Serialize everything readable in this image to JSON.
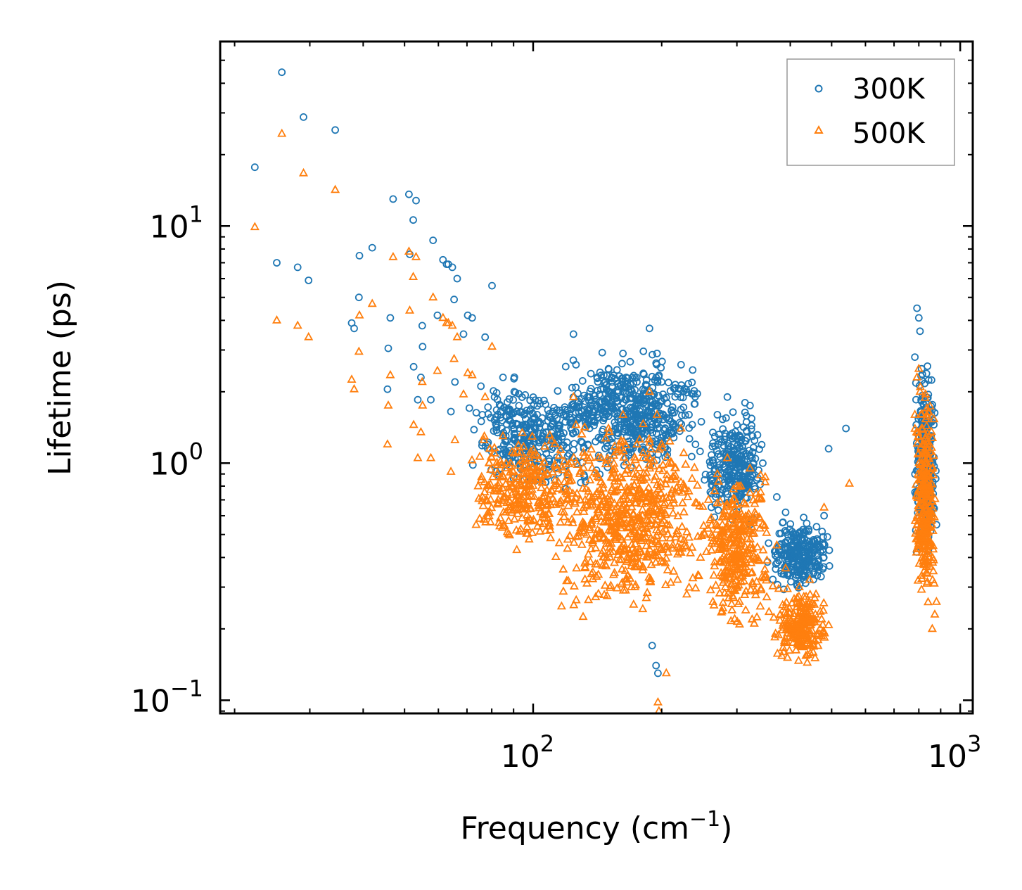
{
  "chart_data": {
    "type": "scatter",
    "title": "",
    "xlabel": "Frequency (cm",
    "xlabel_sup": "−1",
    "xlabel_close": ")",
    "ylabel": "Lifetime (ps)",
    "xscale": "log",
    "yscale": "log",
    "xlim": [
      18.5,
      1070
    ],
    "ylim": [
      0.088,
      60
    ],
    "x_ticks": [
      {
        "value": 100,
        "base": "10",
        "exp": "2"
      },
      {
        "value": 1000,
        "base": "10",
        "exp": "3"
      }
    ],
    "y_ticks": [
      {
        "value": 0.1,
        "base": "10",
        "exp": "−1"
      },
      {
        "value": 1,
        "base": "10",
        "exp": "0"
      },
      {
        "value": 10,
        "base": "10",
        "exp": "1"
      }
    ],
    "legend_position": "top-right",
    "series": [
      {
        "name": "300K",
        "marker": "circle",
        "color": "#1f77b4",
        "points": [
          [
            22.3,
            17.7
          ],
          [
            25.1,
            7.0
          ],
          [
            25.8,
            44.5
          ],
          [
            28.1,
            6.7
          ],
          [
            29.0,
            28.8
          ],
          [
            29.8,
            5.9
          ],
          [
            34.4,
            25.4
          ],
          [
            37.6,
            3.9
          ],
          [
            38.1,
            3.7
          ],
          [
            39.2,
            7.5
          ],
          [
            39.1,
            5.0
          ],
          [
            42.0,
            8.1
          ],
          [
            45.6,
            2.05
          ],
          [
            45.8,
            3.05
          ],
          [
            46.3,
            4.1
          ],
          [
            47.0,
            13.0
          ],
          [
            51.2,
            13.6
          ],
          [
            51.4,
            7.6
          ],
          [
            52.4,
            10.6
          ],
          [
            52.5,
            2.55
          ],
          [
            53.2,
            12.8
          ],
          [
            53.7,
            1.85
          ],
          [
            54.6,
            2.3
          ],
          [
            55.1,
            3.1
          ],
          [
            55.0,
            3.8
          ],
          [
            57.6,
            1.85
          ],
          [
            58.3,
            8.7
          ],
          [
            59.7,
            4.2
          ],
          [
            61.5,
            7.2
          ],
          [
            62.7,
            6.9
          ],
          [
            63.3,
            6.9
          ],
          [
            64.2,
            1.65
          ],
          [
            64.7,
            6.7
          ],
          [
            65.3,
            4.9
          ],
          [
            65.6,
            2.2
          ],
          [
            66.4,
            6.0
          ],
          [
            68.7,
            3.5
          ],
          [
            70.3,
            4.2
          ],
          [
            72.0,
            4.1
          ],
          [
            75.6,
            1.5
          ],
          [
            77.2,
            3.4
          ],
          [
            80.1,
            5.6
          ],
          [
            81.2,
            1.9
          ],
          [
            85.0,
            2.3
          ],
          [
            86.3,
            1.1
          ],
          [
            90.3,
            2.0
          ],
          [
            95.1,
            1.6
          ],
          [
            100.6,
            1.3
          ],
          [
            105.0,
            1.55
          ],
          [
            114.8,
            1.4
          ],
          [
            124.3,
            3.5
          ],
          [
            126.0,
            2.6
          ],
          [
            134.0,
            1.9
          ],
          [
            141.0,
            1.6
          ],
          [
            150.1,
            2.5
          ],
          [
            162.3,
            2.9
          ],
          [
            175.0,
            2.2
          ],
          [
            187.3,
            3.7
          ],
          [
            195.0,
            2.9
          ],
          [
            200.0,
            2.2
          ],
          [
            210.0,
            1.5
          ],
          [
            222.0,
            2.6
          ],
          [
            240.0,
            1.2
          ],
          [
            252.0,
            0.85
          ],
          [
            270.0,
            1.6
          ],
          [
            285.0,
            1.9
          ],
          [
            300.0,
            1.45
          ],
          [
            322.0,
            1.75
          ],
          [
            345.0,
            1.0
          ],
          [
            372.0,
            0.72
          ],
          [
            390.0,
            0.62
          ],
          [
            420.0,
            0.51
          ],
          [
            443.0,
            0.45
          ],
          [
            458.0,
            0.38
          ],
          [
            480.0,
            0.6
          ],
          [
            492.0,
            1.15
          ],
          [
            540.0,
            1.4
          ],
          [
            190.0,
            0.17
          ],
          [
            194.0,
            0.14
          ],
          [
            196.0,
            0.13
          ],
          [
            783.0,
            2.8
          ],
          [
            792.0,
            4.5
          ],
          [
            800.0,
            4.1
          ],
          [
            805.0,
            3.6
          ],
          [
            812.0,
            2.5
          ],
          [
            820.0,
            1.3
          ],
          [
            835.0,
            1.1
          ],
          [
            850.0,
            0.8
          ],
          [
            865.0,
            0.65
          ],
          [
            880.0,
            0.55
          ],
          [
            790.0,
            0.75
          ],
          [
            815.0,
            0.9
          ]
        ],
        "clusters": [
          {
            "x": [
              70,
              140
            ],
            "y": [
              0.65,
              2.6
            ],
            "n": 320
          },
          {
            "x": [
              115,
              250
            ],
            "y": [
              0.85,
              3.2
            ],
            "n": 520
          },
          {
            "x": [
              250,
              350
            ],
            "y": [
              0.5,
              1.9
            ],
            "n": 260
          },
          {
            "x": [
              350,
              500
            ],
            "y": [
              0.28,
              0.62
            ],
            "n": 240
          },
          {
            "x": [
              780,
              880
            ],
            "y": [
              0.35,
              2.9
            ],
            "n": 280
          }
        ]
      },
      {
        "name": "500K",
        "marker": "triangle",
        "color": "#ff7f0e",
        "points": [
          [
            22.3,
            9.9
          ],
          [
            25.1,
            4.0
          ],
          [
            25.8,
            24.5
          ],
          [
            28.1,
            3.8
          ],
          [
            29.0,
            16.7
          ],
          [
            29.8,
            3.4
          ],
          [
            34.4,
            14.2
          ],
          [
            37.6,
            2.25
          ],
          [
            38.1,
            2.05
          ],
          [
            39.2,
            4.2
          ],
          [
            39.1,
            2.95
          ],
          [
            42.0,
            4.7
          ],
          [
            45.6,
            1.2
          ],
          [
            45.8,
            1.75
          ],
          [
            46.3,
            2.35
          ],
          [
            47.0,
            7.4
          ],
          [
            51.2,
            7.8
          ],
          [
            51.4,
            4.4
          ],
          [
            52.4,
            6.1
          ],
          [
            52.5,
            1.45
          ],
          [
            53.2,
            7.4
          ],
          [
            53.7,
            1.05
          ],
          [
            54.6,
            1.35
          ],
          [
            55.1,
            1.75
          ],
          [
            55.0,
            2.2
          ],
          [
            57.6,
            1.05
          ],
          [
            58.3,
            5.0
          ],
          [
            59.7,
            2.45
          ],
          [
            61.5,
            4.1
          ],
          [
            62.7,
            3.9
          ],
          [
            63.3,
            3.9
          ],
          [
            64.2,
            0.92
          ],
          [
            64.7,
            3.8
          ],
          [
            65.3,
            2.75
          ],
          [
            65.6,
            1.25
          ],
          [
            66.4,
            3.4
          ],
          [
            68.7,
            1.95
          ],
          [
            70.3,
            2.4
          ],
          [
            72.0,
            2.35
          ],
          [
            75.6,
            0.85
          ],
          [
            77.2,
            1.9
          ],
          [
            80.1,
            3.1
          ],
          [
            81.2,
            1.1
          ],
          [
            85.0,
            1.3
          ],
          [
            86.3,
            0.62
          ],
          [
            90.3,
            1.1
          ],
          [
            95.1,
            0.9
          ],
          [
            100.6,
            0.72
          ],
          [
            105.0,
            0.85
          ],
          [
            114.8,
            0.78
          ],
          [
            124.3,
            1.9
          ],
          [
            126.0,
            1.45
          ],
          [
            134.0,
            1.05
          ],
          [
            141.0,
            0.9
          ],
          [
            150.1,
            1.4
          ],
          [
            162.3,
            1.6
          ],
          [
            175.0,
            1.2
          ],
          [
            187.3,
            2.0
          ],
          [
            195.0,
            1.6
          ],
          [
            200.0,
            1.2
          ],
          [
            210.0,
            0.85
          ],
          [
            222.0,
            1.4
          ],
          [
            240.0,
            0.68
          ],
          [
            252.0,
            0.5
          ],
          [
            270.0,
            0.9
          ],
          [
            285.0,
            1.05
          ],
          [
            300.0,
            0.8
          ],
          [
            322.0,
            0.95
          ],
          [
            345.0,
            0.55
          ],
          [
            372.0,
            0.45
          ],
          [
            390.0,
            0.36
          ],
          [
            420.0,
            0.3
          ],
          [
            443.0,
            0.26
          ],
          [
            458.0,
            0.23
          ],
          [
            480.0,
            0.65
          ],
          [
            550.0,
            0.82
          ],
          [
            196.0,
            0.098
          ],
          [
            197.0,
            0.09
          ],
          [
            205.0,
            0.13
          ],
          [
            783.0,
            1.6
          ],
          [
            792.0,
            2.3
          ],
          [
            800.0,
            2.5
          ],
          [
            805.0,
            2.0
          ],
          [
            812.0,
            1.4
          ],
          [
            820.0,
            0.75
          ],
          [
            835.0,
            0.6
          ],
          [
            850.0,
            0.45
          ],
          [
            865.0,
            0.35
          ],
          [
            880.0,
            0.26
          ],
          [
            872.0,
            0.23
          ],
          [
            860.0,
            0.2
          ],
          [
            790.0,
            0.42
          ],
          [
            815.0,
            0.5
          ]
        ],
        "clusters": [
          {
            "x": [
              70,
              130
            ],
            "y": [
              0.38,
              1.5
            ],
            "n": 300
          },
          {
            "x": [
              110,
              260
            ],
            "y": [
              0.2,
              1.7
            ],
            "n": 620
          },
          {
            "x": [
              250,
              360
            ],
            "y": [
              0.17,
              1.1
            ],
            "n": 320
          },
          {
            "x": [
              360,
              500
            ],
            "y": [
              0.13,
              0.34
            ],
            "n": 220
          },
          {
            "x": [
              780,
              880
            ],
            "y": [
              0.2,
              2.4
            ],
            "n": 280
          }
        ]
      }
    ]
  }
}
